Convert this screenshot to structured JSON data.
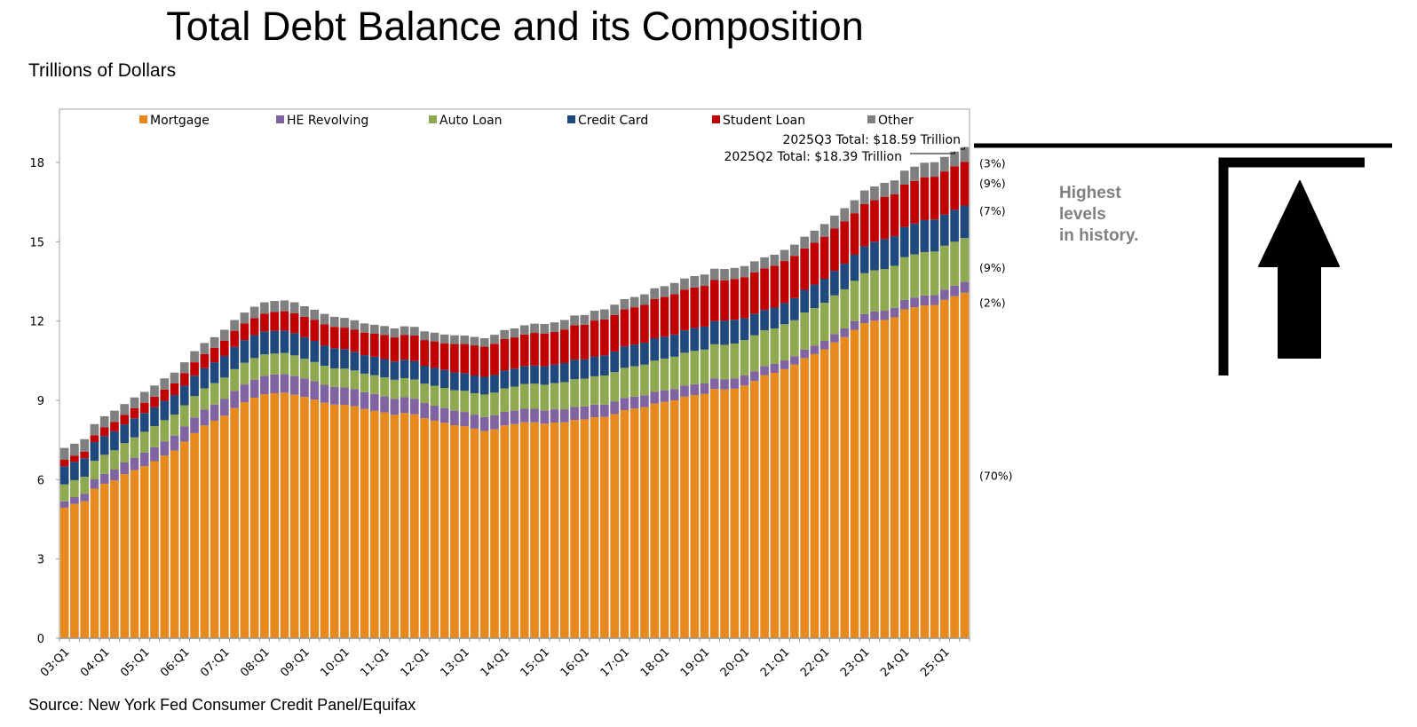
{
  "header": {
    "title": "Total Debt Balance and its Composition",
    "unit_label": "Trillions of Dollars"
  },
  "footer": {
    "source": "Source: New York Fed Consumer Credit Panel/Equifax"
  },
  "side_note": {
    "lines": [
      "Highest",
      "levels",
      "in history."
    ],
    "color": "#808080",
    "icon": "up-arrow-icon"
  },
  "chart_data": {
    "type": "bar",
    "stacked": true,
    "title": "Total Debt Balance and its Composition",
    "ylabel": "Trillions of Dollars",
    "xlabel": "",
    "ylim": [
      0,
      19
    ],
    "yticks": [
      0,
      3,
      6,
      9,
      12,
      15,
      18
    ],
    "xtick_labels": [
      "03:Q1",
      "04:Q1",
      "05:Q1",
      "06:Q1",
      "07:Q1",
      "08:Q1",
      "09:Q1",
      "10:Q1",
      "11:Q1",
      "12:Q1",
      "13:Q1",
      "14:Q1",
      "15:Q1",
      "16:Q1",
      "17:Q1",
      "18:Q1",
      "19:Q1",
      "20:Q1",
      "21:Q1",
      "22:Q1",
      "23:Q1",
      "24:Q1",
      "25:Q1"
    ],
    "x_start": "2003Q1",
    "x_end": "2025Q3",
    "grid": false,
    "legend_position": "top",
    "series": [
      {
        "name": "Mortgage",
        "color": "#E8891D",
        "values": [
          4.94,
          5.08,
          5.18,
          5.66,
          5.84,
          5.97,
          6.21,
          6.36,
          6.51,
          6.7,
          6.91,
          7.1,
          7.44,
          7.76,
          8.05,
          8.23,
          8.42,
          8.71,
          8.93,
          9.1,
          9.23,
          9.27,
          9.29,
          9.21,
          9.13,
          9.03,
          8.91,
          8.84,
          8.83,
          8.78,
          8.67,
          8.6,
          8.54,
          8.45,
          8.52,
          8.47,
          8.32,
          8.23,
          8.15,
          8.06,
          8.02,
          7.93,
          7.84,
          7.9,
          8.05,
          8.1,
          8.17,
          8.17,
          8.12,
          8.16,
          8.17,
          8.26,
          8.28,
          8.36,
          8.37,
          8.48,
          8.63,
          8.69,
          8.74,
          8.88,
          8.94,
          9.0,
          9.14,
          9.2,
          9.24,
          9.43,
          9.41,
          9.44,
          9.56,
          9.73,
          9.95,
          10.04,
          10.18,
          10.35,
          10.6,
          10.75,
          10.93,
          11.19,
          11.39,
          11.67,
          11.92,
          12.01,
          12.04,
          12.14,
          12.44,
          12.52,
          12.59,
          12.61,
          12.8,
          12.94,
          13.07
        ]
      },
      {
        "name": "HE Revolving",
        "color": "#8064A2",
        "values": [
          0.24,
          0.26,
          0.29,
          0.35,
          0.38,
          0.41,
          0.44,
          0.47,
          0.51,
          0.53,
          0.54,
          0.56,
          0.57,
          0.59,
          0.6,
          0.61,
          0.63,
          0.65,
          0.67,
          0.68,
          0.7,
          0.71,
          0.71,
          0.71,
          0.7,
          0.69,
          0.68,
          0.67,
          0.66,
          0.65,
          0.64,
          0.64,
          0.62,
          0.61,
          0.6,
          0.59,
          0.58,
          0.57,
          0.56,
          0.55,
          0.54,
          0.53,
          0.53,
          0.53,
          0.52,
          0.51,
          0.51,
          0.51,
          0.5,
          0.5,
          0.49,
          0.49,
          0.49,
          0.48,
          0.47,
          0.47,
          0.46,
          0.45,
          0.45,
          0.44,
          0.44,
          0.43,
          0.42,
          0.41,
          0.41,
          0.4,
          0.39,
          0.39,
          0.38,
          0.37,
          0.35,
          0.34,
          0.33,
          0.32,
          0.32,
          0.32,
          0.32,
          0.32,
          0.33,
          0.33,
          0.34,
          0.35,
          0.35,
          0.36,
          0.36,
          0.37,
          0.38,
          0.38,
          0.39,
          0.4,
          0.41
        ]
      },
      {
        "name": "Auto Loan",
        "color": "#8EA94F",
        "values": [
          0.64,
          0.64,
          0.64,
          0.7,
          0.72,
          0.73,
          0.73,
          0.77,
          0.79,
          0.79,
          0.8,
          0.8,
          0.8,
          0.81,
          0.8,
          0.81,
          0.81,
          0.82,
          0.82,
          0.82,
          0.81,
          0.79,
          0.79,
          0.78,
          0.74,
          0.73,
          0.72,
          0.7,
          0.71,
          0.7,
          0.7,
          0.71,
          0.71,
          0.72,
          0.72,
          0.73,
          0.73,
          0.75,
          0.76,
          0.77,
          0.8,
          0.81,
          0.85,
          0.86,
          0.88,
          0.91,
          0.94,
          0.95,
          0.97,
          0.99,
          1.03,
          1.05,
          1.05,
          1.07,
          1.1,
          1.12,
          1.14,
          1.15,
          1.16,
          1.18,
          1.2,
          1.22,
          1.24,
          1.26,
          1.27,
          1.29,
          1.3,
          1.32,
          1.34,
          1.36,
          1.35,
          1.34,
          1.37,
          1.36,
          1.4,
          1.42,
          1.44,
          1.46,
          1.48,
          1.52,
          1.55,
          1.56,
          1.58,
          1.59,
          1.62,
          1.63,
          1.64,
          1.64,
          1.66,
          1.66,
          1.66
        ]
      },
      {
        "name": "Credit Card",
        "color": "#1F497D",
        "values": [
          0.69,
          0.69,
          0.7,
          0.71,
          0.71,
          0.72,
          0.71,
          0.72,
          0.71,
          0.72,
          0.73,
          0.74,
          0.74,
          0.77,
          0.77,
          0.79,
          0.82,
          0.84,
          0.86,
          0.87,
          0.87,
          0.86,
          0.85,
          0.84,
          0.82,
          0.8,
          0.77,
          0.76,
          0.74,
          0.71,
          0.7,
          0.7,
          0.69,
          0.69,
          0.7,
          0.7,
          0.68,
          0.68,
          0.68,
          0.68,
          0.67,
          0.67,
          0.67,
          0.67,
          0.68,
          0.68,
          0.68,
          0.69,
          0.7,
          0.7,
          0.72,
          0.74,
          0.73,
          0.75,
          0.76,
          0.78,
          0.81,
          0.82,
          0.83,
          0.85,
          0.83,
          0.84,
          0.85,
          0.87,
          0.87,
          0.88,
          0.92,
          0.9,
          0.83,
          0.82,
          0.77,
          0.79,
          0.8,
          0.84,
          0.86,
          0.89,
          0.91,
          0.93,
          0.97,
          0.99,
          1.02,
          1.08,
          1.13,
          1.12,
          1.14,
          1.17,
          1.21,
          1.21,
          1.18,
          1.21,
          1.23
        ]
      },
      {
        "name": "Student Loan",
        "color": "#C00000",
        "values": [
          0.24,
          0.24,
          0.25,
          0.26,
          0.33,
          0.35,
          0.36,
          0.38,
          0.39,
          0.4,
          0.43,
          0.44,
          0.48,
          0.51,
          0.53,
          0.55,
          0.58,
          0.61,
          0.63,
          0.64,
          0.67,
          0.71,
          0.73,
          0.76,
          0.77,
          0.79,
          0.8,
          0.81,
          0.81,
          0.83,
          0.85,
          0.87,
          0.91,
          0.91,
          0.93,
          0.96,
          0.97,
          1.0,
          1.01,
          1.07,
          1.1,
          1.14,
          1.14,
          1.18,
          1.19,
          1.18,
          1.19,
          1.23,
          1.24,
          1.24,
          1.27,
          1.3,
          1.31,
          1.36,
          1.36,
          1.38,
          1.4,
          1.41,
          1.43,
          1.48,
          1.5,
          1.53,
          1.54,
          1.53,
          1.54,
          1.55,
          1.52,
          1.54,
          1.55,
          1.56,
          1.57,
          1.58,
          1.59,
          1.59,
          1.57,
          1.58,
          1.59,
          1.6,
          1.6,
          1.56,
          1.6,
          1.57,
          1.6,
          1.58,
          1.6,
          1.61,
          1.62,
          1.62,
          1.63,
          1.64,
          1.65
        ]
      },
      {
        "name": "Other",
        "color": "#7F7F7F",
        "values": [
          0.45,
          0.45,
          0.47,
          0.42,
          0.42,
          0.43,
          0.41,
          0.41,
          0.41,
          0.42,
          0.42,
          0.41,
          0.41,
          0.42,
          0.42,
          0.4,
          0.41,
          0.41,
          0.41,
          0.43,
          0.43,
          0.42,
          0.41,
          0.41,
          0.4,
          0.39,
          0.39,
          0.38,
          0.37,
          0.36,
          0.35,
          0.34,
          0.34,
          0.34,
          0.33,
          0.33,
          0.33,
          0.33,
          0.33,
          0.33,
          0.32,
          0.32,
          0.32,
          0.34,
          0.34,
          0.34,
          0.35,
          0.35,
          0.36,
          0.36,
          0.36,
          0.37,
          0.37,
          0.37,
          0.38,
          0.39,
          0.39,
          0.39,
          0.4,
          0.41,
          0.41,
          0.42,
          0.42,
          0.43,
          0.43,
          0.43,
          0.43,
          0.42,
          0.42,
          0.42,
          0.42,
          0.42,
          0.42,
          0.43,
          0.44,
          0.46,
          0.48,
          0.49,
          0.5,
          0.5,
          0.51,
          0.52,
          0.53,
          0.53,
          0.53,
          0.54,
          0.55,
          0.55,
          0.55,
          0.56,
          0.56
        ]
      }
    ],
    "annotations": [
      {
        "text": "2025Q3 Total: $18.59 Trillion",
        "quarter": "2025Q3",
        "value": 18.59
      },
      {
        "text": "2025Q2 Total: $18.39 Trillion",
        "quarter": "2025Q2",
        "value": 18.39
      }
    ],
    "share_labels": [
      {
        "series": "Other",
        "text": "(3%)"
      },
      {
        "series": "Student Loan",
        "text": "(9%)"
      },
      {
        "series": "Credit Card",
        "text": "(7%)"
      },
      {
        "series": "Auto Loan",
        "text": "(9%)"
      },
      {
        "series": "HE Revolving",
        "text": "(2%)"
      },
      {
        "series": "Mortgage",
        "text": "(70%)"
      }
    ]
  }
}
